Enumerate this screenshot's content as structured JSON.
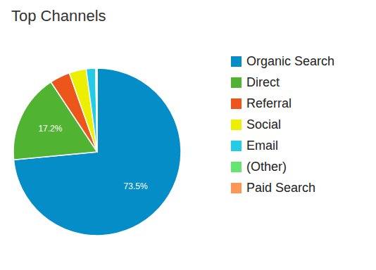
{
  "chart_data": {
    "type": "pie",
    "title": "Top Channels",
    "categories": [
      "Organic Search",
      "Direct",
      "Referral",
      "Social",
      "Email",
      "(Other)",
      "Paid Search"
    ],
    "values": [
      73.5,
      17.2,
      3.9,
      3.3,
      1.8,
      0.2,
      0.1
    ],
    "value_labels": [
      "73.5%",
      "17.2%",
      null,
      null,
      null,
      null,
      null
    ],
    "colors": [
      "#058dc7",
      "#50b432",
      "#ed561b",
      "#edef00",
      "#24cbe5",
      "#64e572",
      "#ff9655"
    ],
    "data_labels": true,
    "legend": "right"
  }
}
